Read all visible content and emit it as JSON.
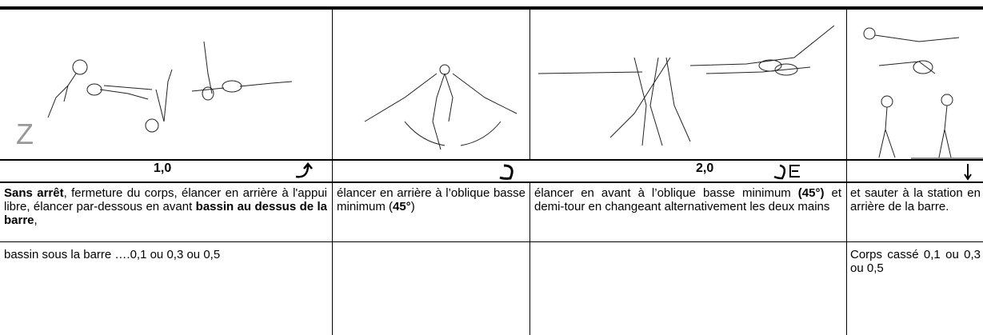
{
  "figure_labels": [
    "Z"
  ],
  "value_row": [
    "1,0",
    "2,0"
  ],
  "description": [
    [
      {
        "text": "Sans arrêt",
        "bold": true
      },
      {
        "text": ", fermeture du corps, élancer en arrière à l'appui libre, élancer par-dessous en avant ",
        "bold": false
      },
      {
        "text": "bassin au dessus de la barre",
        "bold": true
      },
      {
        "text": ",",
        "bold": false
      }
    ],
    [
      {
        "text": "élancer en arrière à l’oblique basse minimum (",
        "bold": false
      },
      {
        "text": "45°",
        "bold": true
      },
      {
        "text": ")",
        "bold": false
      }
    ],
    [
      {
        "text": "élancer en avant à l’oblique basse minimum ",
        "bold": false
      },
      {
        "text": "(45°)",
        "bold": true
      },
      {
        "text": " et demi-tour en changeant alternativement les deux mains",
        "bold": false
      }
    ],
    [
      {
        "text": "et sauter à la station en arrière de la barre.",
        "bold": false
      }
    ]
  ],
  "deductions": [
    "bassin sous la barre ….0,1 ou 0,3 ou 0,5",
    null,
    null,
    "Corps cassé 0,1 ou 0,3 ou 0,5"
  ]
}
